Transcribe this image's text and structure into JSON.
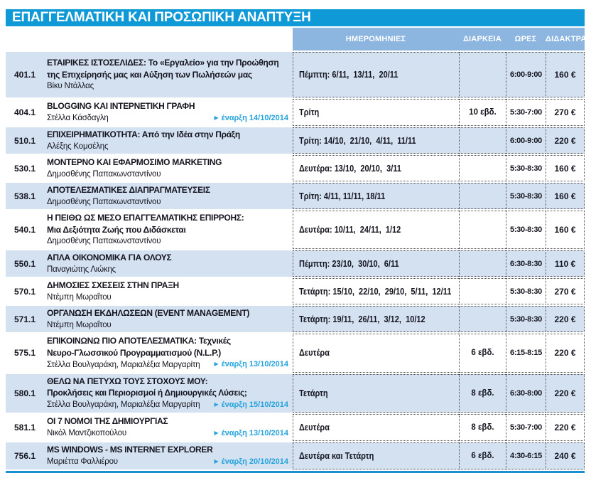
{
  "title": "ΕΠΑΓΓΕΛΜΑΤΙΚΗ ΚΑΙ ΠΡΟΣΩΠΙΚΗ ΑΝΑΠΤΥΞΗ",
  "columns": {
    "dates": "ΗΜΕΡΟΜΗΝΙΕΣ",
    "duration": "ΔΙΑΡΚΕΙΑ",
    "hours": "ΩΡΕΣ",
    "fees": "ΔΙΔΑΚΤΡΑ"
  },
  "icons": {
    "start_arrow": "▶"
  },
  "colors": {
    "title_bar": "#0f99d6",
    "header_band": "#8cb5df",
    "row_shaded": "#d3e1f1",
    "row_white": "#ffffff",
    "link_blue": "#25a3dc",
    "bottom_line": "#1a90d0"
  },
  "rows": [
    {
      "code": "401.1",
      "title_lines": [
        "ΕΤΑΙΡΙΚΕΣ ΙΣΤΟΣΕΛΙΔΕΣ: Το «Εργαλείο» για την Προώθηση",
        "της Επιχείρησής μας και Αύξηση των Πωλήσεών μας"
      ],
      "instructor": "Βίκυ Ντάλλας",
      "start": "",
      "dates": "Πέμπτη: 6/11,  13/11,  20/11",
      "duration": "",
      "hours": "6:00-9:00",
      "fees": "160 €"
    },
    {
      "code": "404.1",
      "title_lines": [
        "BLOGGING ΚΑΙ ΙΝΤΕΡΝΕΤΙΚΗ ΓΡΑΦΗ"
      ],
      "instructor": "Στέλλα Κάσδαγλη",
      "start": "έναρξη 14/10/2014",
      "dates": "Τρίτη",
      "duration": "10 εβδ.",
      "hours": "5:30-7:00",
      "fees": "270 €"
    },
    {
      "code": "510.1",
      "title_lines": [
        "ΕΠΙΧΕΙΡΗΜΑΤΙΚΟΤΗΤΑ: Από την Ιδέα στην Πράξη"
      ],
      "instructor": "Αλέξης Κομσέλης",
      "start": "",
      "dates": "Τρίτη: 14/10,  21/10,  4/11,  11/11",
      "duration": "",
      "hours": "6:00-9:00",
      "fees": "220 €"
    },
    {
      "code": "530.1",
      "title_lines": [
        "ΜΟΝΤΕΡΝΟ ΚΑΙ ΕΦΑΡΜΟΣΙΜΟ MARKETING"
      ],
      "instructor": "Δημοσθένης Παπακωνσταντίνου",
      "start": "",
      "dates": "Δευτέρα: 13/10,  20/10,  3/11",
      "duration": "",
      "hours": "5:30-8:30",
      "fees": "160 €"
    },
    {
      "code": "538.1",
      "title_lines": [
        "ΑΠΟΤΕΛΕΣΜΑΤΙΚΕΣ ΔΙΑΠΡΑΓΜΑΤΕΥΣΕΙΣ"
      ],
      "instructor": "Δημοσθένης Παπακωνσταντίνου",
      "start": "",
      "dates": "Τρίτη: 4/11, 11/11, 18/11",
      "duration": "",
      "hours": "5:30-8:30",
      "fees": "160 €"
    },
    {
      "code": "540.1",
      "title_lines": [
        "Η ΠΕΙΘΩ ΩΣ ΜΕΣΟ ΕΠΑΓΓΕΛΜΑΤΙΚΗΣ ΕΠΙΡΡΟΗΣ:",
        "Μια Δεξιότητα Ζωής που Διδάσκεται"
      ],
      "instructor": "Δημοσθένης Παπακωνσταντίνου",
      "start": "",
      "dates": "Δευτέρα: 10/11,  24/11,  1/12",
      "duration": "",
      "hours": "5:30-8:30",
      "fees": "160 €"
    },
    {
      "code": "550.1",
      "title_lines": [
        "ΑΠΛΑ ΟΙΚΟΝΟΜΙΚΑ ΓΙΑ ΟΛΟΥΣ"
      ],
      "instructor": "Παναγιώτης Λιώκης",
      "start": "",
      "dates": "Πέμπτη: 23/10,  30/10,  6/11",
      "duration": "",
      "hours": "6:30-8:30",
      "fees": "110 €"
    },
    {
      "code": "570.1",
      "title_lines": [
        "ΔΗΜΟΣΙΕΣ ΣΧΕΣΕΙΣ ΣΤΗΝ ΠΡΑΞΗ"
      ],
      "instructor": "Ντέμπη Μωραΐτου",
      "start": "",
      "dates": "Τετάρτη: 15/10,  22/10,  29/10,  5/11,  12/11",
      "duration": "",
      "hours": "5:30-8:30",
      "fees": "270 €"
    },
    {
      "code": "571.1",
      "title_lines": [
        "ΟΡΓΑΝΩΣΗ ΕΚΔΗΛΩΣΕΩΝ (EVENT MANAGEMENT)"
      ],
      "instructor": "Ντέμπη Μωραΐτου",
      "start": "",
      "dates": "Τετάρτη: 19/11,  26/11,  3/12,  10/12",
      "duration": "",
      "hours": "5:30-8:30",
      "fees": "220 €"
    },
    {
      "code": "575.1",
      "title_lines": [
        "ΕΠΙΚΟΙΝΩΝΩ ΠΙΟ ΑΠΟΤΕΛΕΣΜΑΤΙΚΑ: Τεχνικές",
        "Νευρο-Γλωσσικού Προγραμματισμού (N.L.P.)"
      ],
      "instructor": "Στέλλα Βουλγαράκη, Μαριαλέξια Μαργαρίτη",
      "start": "έναρξη 13/10/2014",
      "dates": "Δευτέρα",
      "duration": "6 εβδ.",
      "hours": "6:15-8:15",
      "fees": "220 €"
    },
    {
      "code": "580.1",
      "title_lines": [
        "ΘΕΛΩ ΝΑ ΠΕΤΥΧΩ ΤΟΥΣ ΣΤΟΧΟΥΣ ΜΟΥ:",
        "Προκλήσεις και Περιορισμοί ή Δημιουργικές Λύσεις;"
      ],
      "instructor": "Στέλλα Βουλγαράκη, Μαριαλέξια Μαργαρίτη",
      "start": "έναρξη 15/10/2014",
      "dates": "Τετάρτη",
      "duration": "8 εβδ.",
      "hours": "6:30-8:00",
      "fees": "220 €"
    },
    {
      "code": "581.1",
      "title_lines": [
        "ΟΙ 7 ΝΟΜΟΙ ΤΗΣ ΔΗΜΙΟΥΡΓΙΑΣ"
      ],
      "instructor": "Νικόλ Μαντζικοπούλου",
      "start": "έναρξη 13/10/2014",
      "dates": "Δευτέρα",
      "duration": "8 εβδ.",
      "hours": "5:30-7:00",
      "fees": "220 €"
    },
    {
      "code": "756.1",
      "title_lines": [
        "MS WINDOWS - MS INTERNET EXPLORER"
      ],
      "instructor": "Μαριέττα Φαλλιέρου",
      "start": "έναρξη 20/10/2014",
      "dates": "Δευτέρα και Τετάρτη",
      "duration": "6 εβδ.",
      "hours": "4:30-6:15",
      "fees": "240 €"
    }
  ]
}
